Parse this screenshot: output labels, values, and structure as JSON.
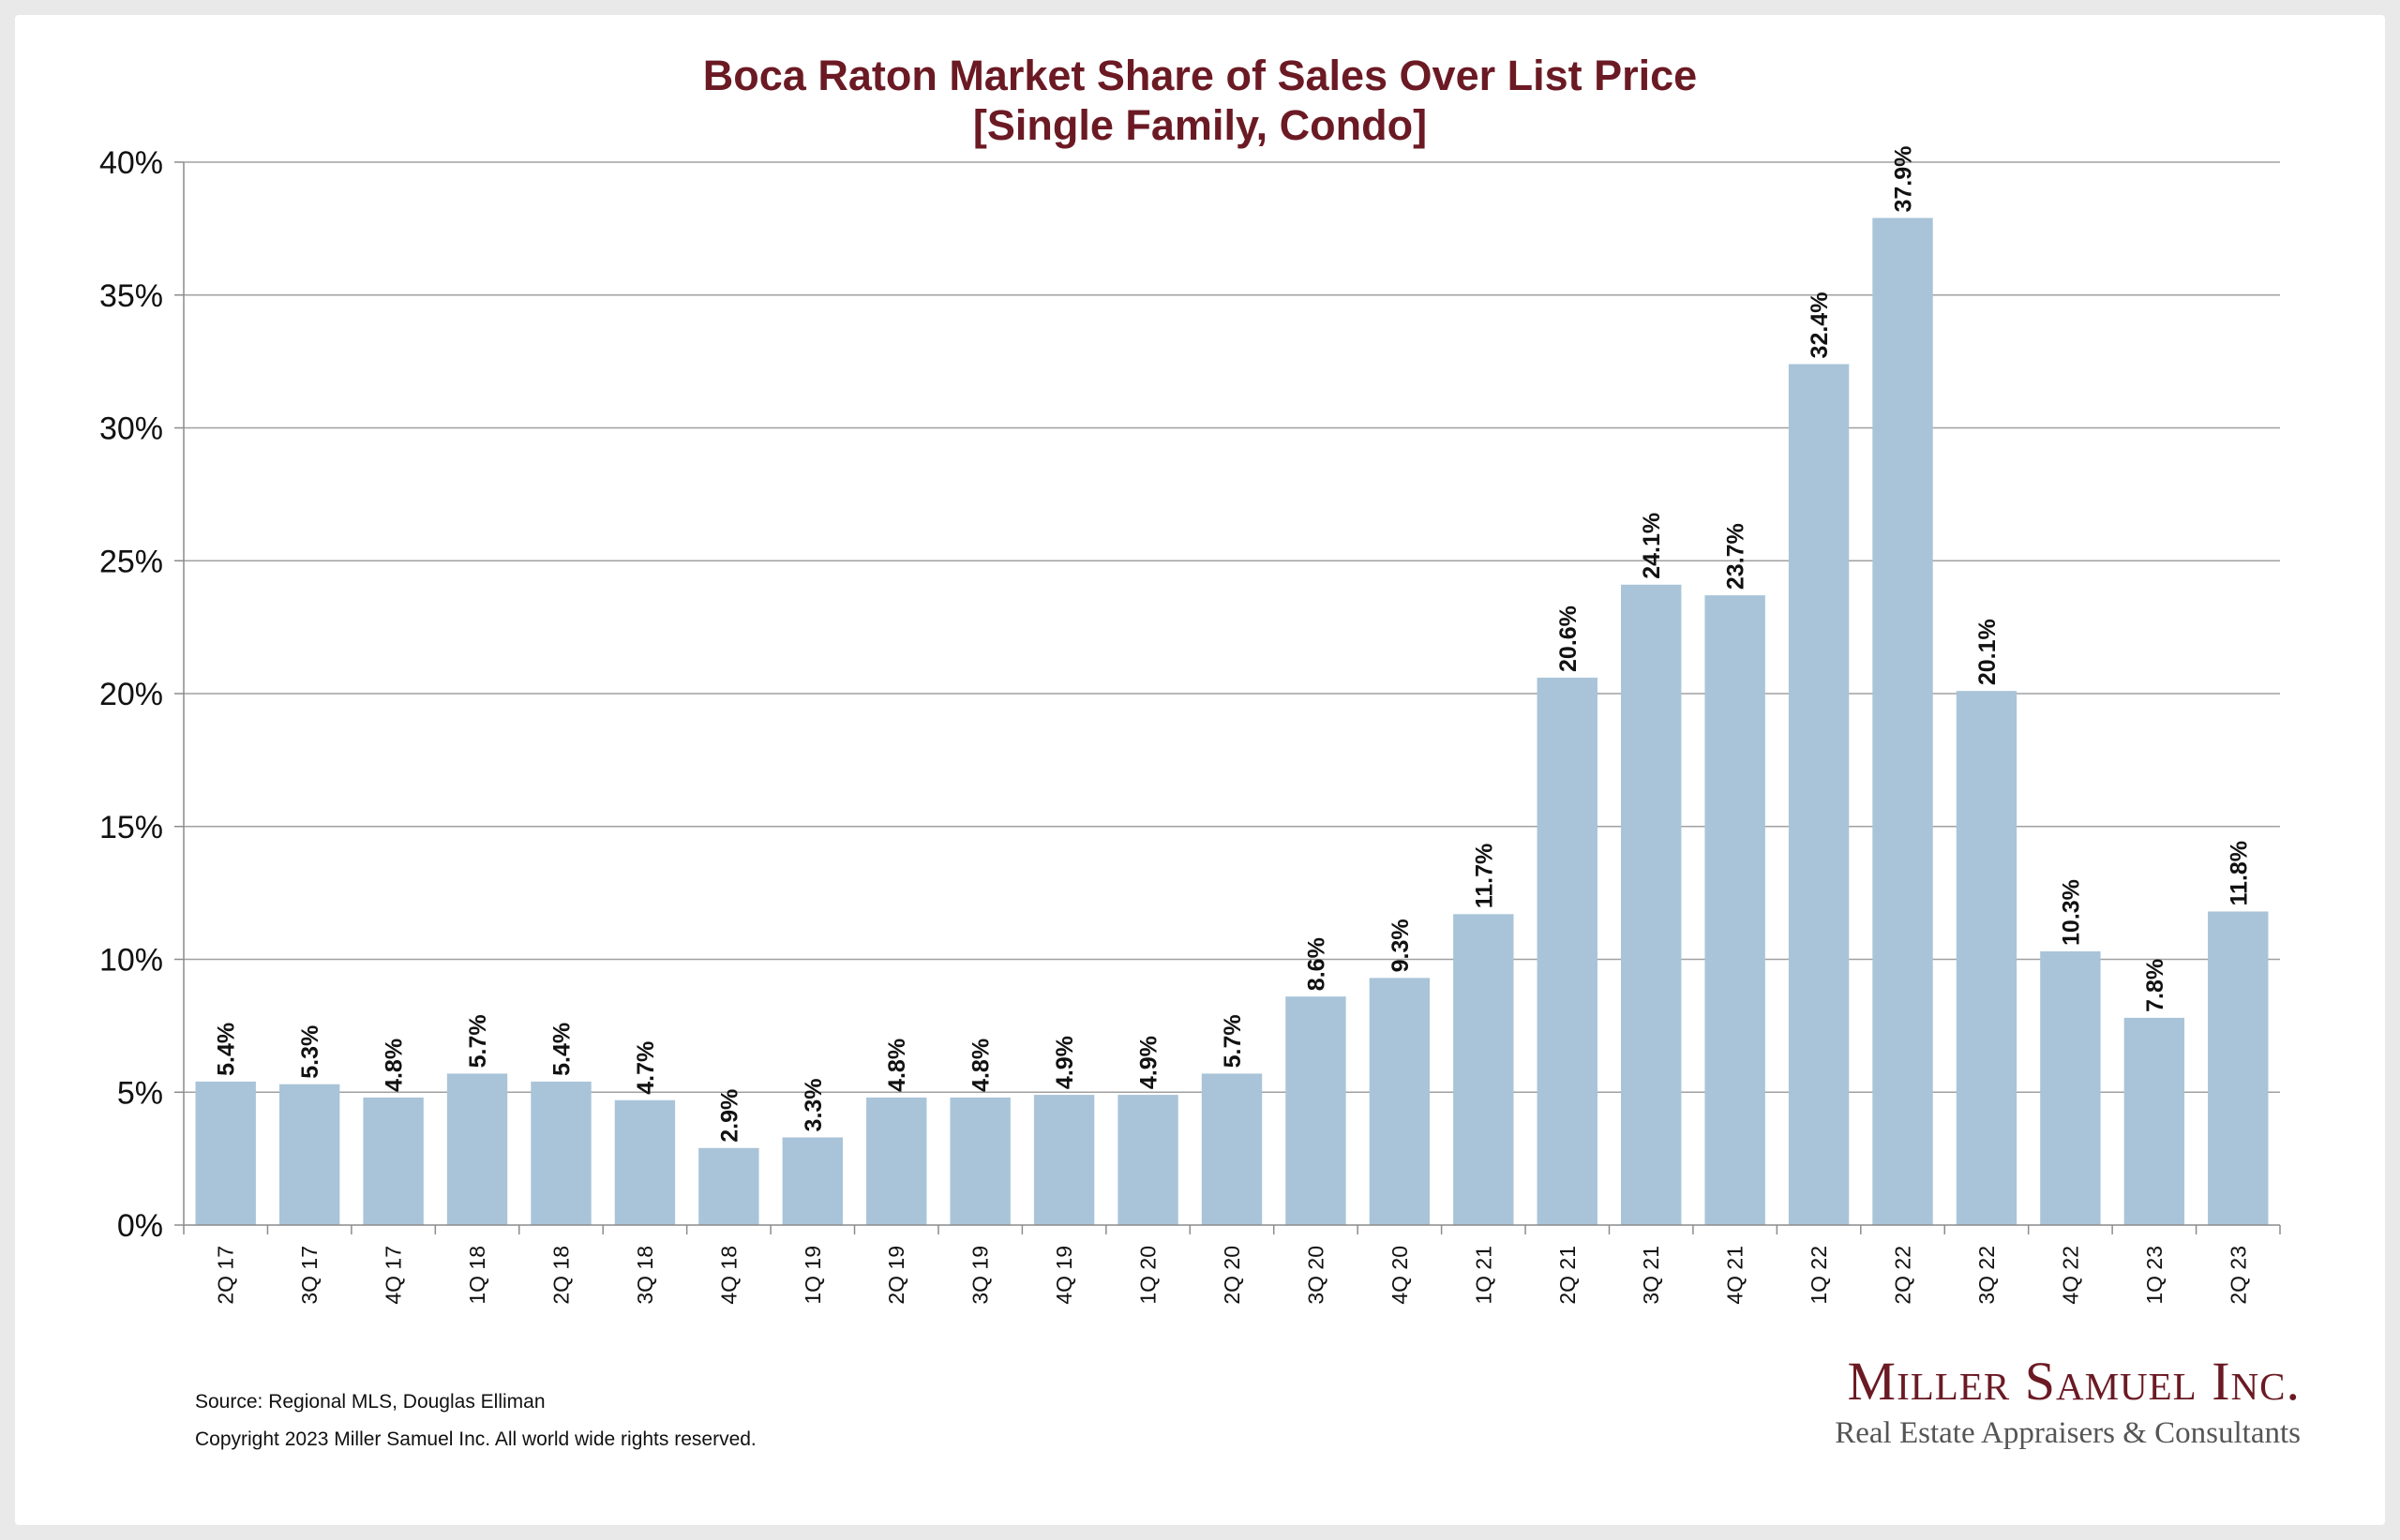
{
  "chart_data": {
    "type": "bar",
    "title_lines": [
      "Boca Raton Market Share of Sales Over List Price",
      "[Single Family, Condo]"
    ],
    "xlabel": "",
    "ylabel": "",
    "ylim": [
      0,
      40
    ],
    "y_ticks": [
      0,
      5,
      10,
      15,
      20,
      25,
      30,
      35,
      40
    ],
    "y_tick_labels": [
      "0%",
      "5%",
      "10%",
      "15%",
      "20%",
      "25%",
      "30%",
      "35%",
      "40%"
    ],
    "grid": true,
    "legend": "none",
    "bar_color": "#a9c4d8",
    "categories": [
      "2Q 17",
      "3Q 17",
      "4Q 17",
      "1Q 18",
      "2Q 18",
      "3Q 18",
      "4Q 18",
      "1Q 19",
      "2Q 19",
      "3Q 19",
      "4Q 19",
      "1Q 20",
      "2Q 20",
      "3Q 20",
      "4Q 20",
      "1Q 21",
      "2Q 21",
      "3Q 21",
      "4Q 21",
      "1Q 22",
      "2Q 22",
      "3Q 22",
      "4Q 22",
      "1Q 23",
      "2Q 23"
    ],
    "values": [
      5.4,
      5.3,
      4.8,
      5.7,
      5.4,
      4.7,
      2.9,
      3.3,
      4.8,
      4.8,
      4.9,
      4.9,
      5.7,
      8.6,
      9.3,
      11.7,
      20.6,
      24.1,
      23.7,
      32.4,
      37.9,
      20.1,
      10.3,
      7.8,
      11.8
    ],
    "data_labels": [
      "5.4%",
      "5.3%",
      "4.8%",
      "5.7%",
      "5.4%",
      "4.7%",
      "2.9%",
      "3.3%",
      "4.8%",
      "4.8%",
      "4.9%",
      "4.9%",
      "5.7%",
      "8.6%",
      "9.3%",
      "11.7%",
      "20.6%",
      "24.1%",
      "23.7%",
      "32.4%",
      "37.9%",
      "20.1%",
      "10.3%",
      "7.8%",
      "11.8%"
    ]
  },
  "footer": {
    "source": "Source: Regional MLS, Douglas Elliman",
    "copyright": "Copyright 2023 Miller Samuel Inc.  All world wide rights reserved."
  },
  "logo": {
    "name": "Miller Samuel Inc.",
    "tagline": "Real Estate Appraisers & Consultants"
  },
  "colors": {
    "title": "#6b1a24",
    "bar": "#a9c4d8",
    "grid": "#a0a0a0",
    "axis": "#8c8c8c"
  }
}
